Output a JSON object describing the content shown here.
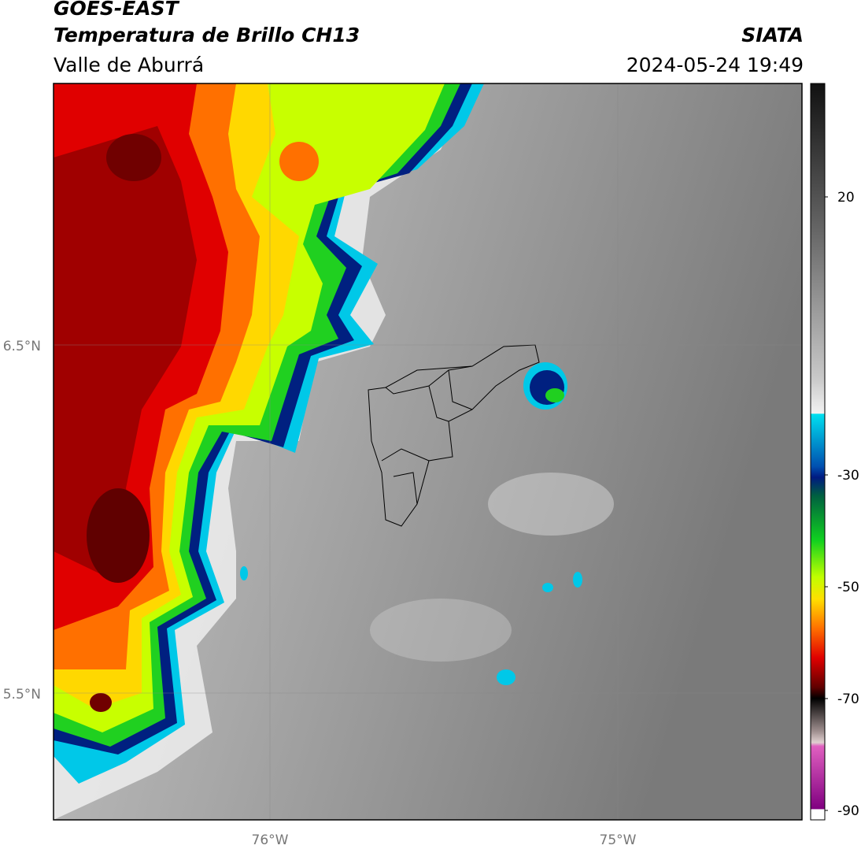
{
  "header": {
    "satellite": "GOES-EAST",
    "product": "Temperatura de Brillo CH13",
    "region": "Valle de Aburrá",
    "agency": "SIATA",
    "datetime": "2024-05-24 19:49"
  },
  "map": {
    "lat_labels": [
      "6.5°N",
      "5.5°N"
    ],
    "lon_labels": [
      "76°W",
      "75°W"
    ]
  },
  "colorbar": {
    "ticks": [
      "20",
      "-30",
      "-50",
      "-70",
      "-90"
    ]
  }
}
